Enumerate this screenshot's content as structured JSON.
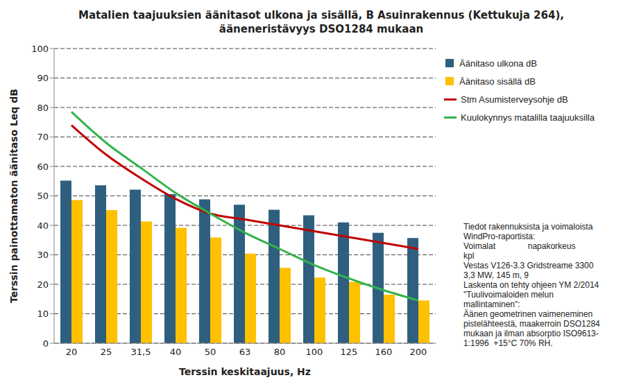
{
  "chart_data": {
    "type": "bar",
    "title": "Matalien taajuuksien äänitasot ulkona ja sisällä, B Asuinrakennus (Kettukuja 264), ääneneristävyys DSO1284 mukaan",
    "x_label": "Terssin keskitaajuus, Hz",
    "y_label": "Terssin painottamaton äänitaso Leq dB",
    "categories": [
      "20",
      "25",
      "31,5",
      "40",
      "50",
      "63",
      "80",
      "100",
      "125",
      "160",
      "200"
    ],
    "series": [
      {
        "name": "Äänitaso ulkona dB",
        "type": "bar",
        "color": "#2f5f7e",
        "values": [
          55.2,
          53.6,
          52.1,
          50.6,
          48.8,
          47.0,
          45.3,
          43.4,
          41.0,
          37.5,
          35.7
        ]
      },
      {
        "name": "Äänitaso sisällä dB",
        "type": "bar",
        "color": "#ffc000",
        "values": [
          48.6,
          45.2,
          41.3,
          39.2,
          35.9,
          30.4,
          25.6,
          22.3,
          20.8,
          16.5,
          14.5
        ]
      },
      {
        "name": "Stm Asumisterveysohje dB",
        "type": "line",
        "color": "#c00000",
        "marker": "none",
        "values": [
          74,
          64,
          56,
          49,
          44,
          42,
          40,
          38,
          36,
          34,
          32
        ]
      },
      {
        "name": "Kuulokynnys matalilla taajuuksilla",
        "type": "line",
        "color": "#33b34a",
        "marker": "none",
        "values": [
          78.5,
          68,
          59.5,
          51,
          44,
          37.5,
          32,
          26.5,
          22,
          18,
          14.5
        ]
      }
    ],
    "ylim": [
      0,
      100
    ],
    "yticks": [
      0,
      10,
      20,
      30,
      40,
      50,
      60,
      70,
      80,
      90,
      100
    ],
    "grid": true,
    "legend": "right",
    "annotations": [
      "Tiedot rakennuksista ja voimaloista",
      "WindPro-raportista:",
      "Voimalat              napakorkeus",
      "kpl",
      "Vestas V126-3.3 Gridstreame 3300",
      "3,3 MW, 145 m, 9",
      "Laskenta on tehty ohjeen YM 2/2014",
      "\"Tuulivoimaloiden melun",
      "mallintaminen\":",
      "Äänen geometrinen vaimeneminen",
      "pistelähteestä, maakerroin DSO1284",
      "mukaan ja ilman absorptio ISO9613-",
      "1:1996  +15°C 70% RH."
    ]
  }
}
